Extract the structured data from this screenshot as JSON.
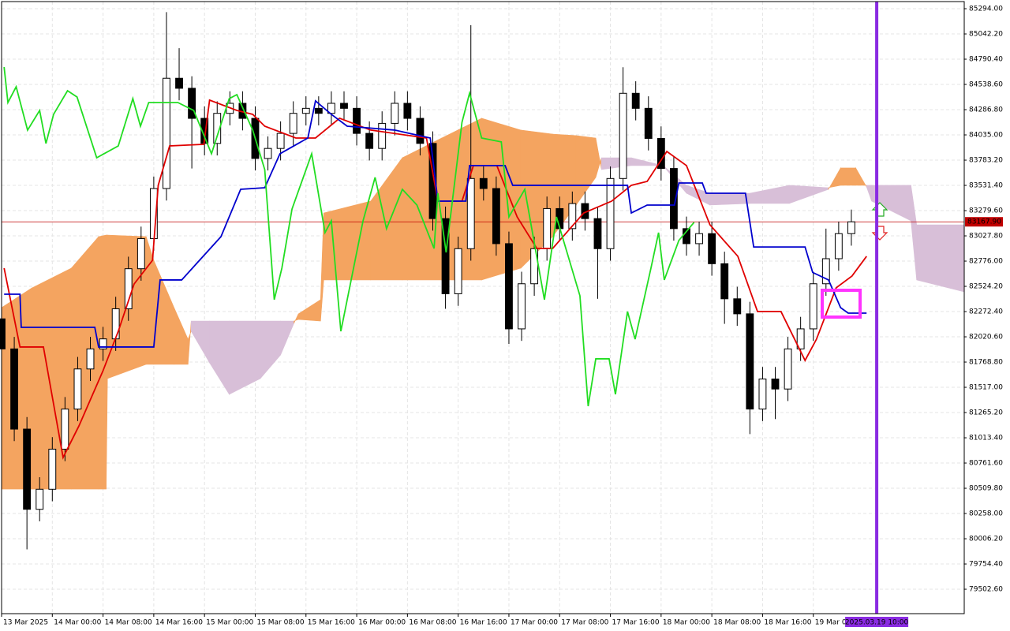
{
  "chart_data": {
    "type": "candlestick",
    "xlim": [
      -8,
      143.8
    ],
    "ylim": [
      79259,
      85365
    ],
    "grid": true,
    "yticks": [
      {
        "value": 85294,
        "label": "85294.00"
      },
      {
        "value": 85042.2,
        "label": "85042.20"
      },
      {
        "value": 84790.4,
        "label": "84790.40"
      },
      {
        "value": 84538.6,
        "label": "84538.60"
      },
      {
        "value": 84286.8,
        "label": "84286.80"
      },
      {
        "value": 84035,
        "label": "84035.00"
      },
      {
        "value": 83783.2,
        "label": "83783.20"
      },
      {
        "value": 83531.4,
        "label": "83531.40"
      },
      {
        "value": 83279.6,
        "label": "83279.60"
      },
      {
        "value": 83027.8,
        "label": "83027.80"
      },
      {
        "value": 82776,
        "label": "82776.00"
      },
      {
        "value": 82524.2,
        "label": "82524.20"
      },
      {
        "value": 82272.4,
        "label": "82272.40"
      },
      {
        "value": 82020.6,
        "label": "82020.60"
      },
      {
        "value": 81768.8,
        "label": "81768.80"
      },
      {
        "value": 81517,
        "label": "81517.00"
      },
      {
        "value": 81265.2,
        "label": "81265.20"
      },
      {
        "value": 81013.4,
        "label": "81013.40"
      },
      {
        "value": 80761.6,
        "label": "80761.60"
      },
      {
        "value": 80509.8,
        "label": "80509.80"
      },
      {
        "value": 80258,
        "label": "80258.00"
      },
      {
        "value": 80006.2,
        "label": "80006.20"
      },
      {
        "value": 79754.4,
        "label": "79754.40"
      },
      {
        "value": 79502.6,
        "label": "79502.60"
      }
    ],
    "xticks": [
      {
        "value": -8,
        "label": "13 Mar 2025"
      },
      {
        "value": 0,
        "label": "14 Mar 00:00"
      },
      {
        "value": 8,
        "label": "14 Mar 08:00"
      },
      {
        "value": 16,
        "label": "14 Mar 16:00"
      },
      {
        "value": 24,
        "label": "15 Mar 00:00"
      },
      {
        "value": 32,
        "label": "15 Mar 08:00"
      },
      {
        "value": 40,
        "label": "15 Mar 16:00"
      },
      {
        "value": 48,
        "label": "16 Mar 00:00"
      },
      {
        "value": 56,
        "label": "16 Mar 08:00"
      },
      {
        "value": 64,
        "label": "16 Mar 16:00"
      },
      {
        "value": 72,
        "label": "17 Mar 00:00"
      },
      {
        "value": 80,
        "label": "17 Mar 08:00"
      },
      {
        "value": 88,
        "label": "17 Mar 16:00"
      },
      {
        "value": 96,
        "label": "18 Mar 00:00"
      },
      {
        "value": 104,
        "label": "18 Mar 08:00"
      },
      {
        "value": 112,
        "label": "18 Mar 16:00"
      },
      {
        "value": 120,
        "label": "19 Mar 00:00"
      }
    ],
    "current_price": {
      "value": 83167.9,
      "label": "83167.90",
      "color": "#c00000"
    },
    "time_marker": {
      "value": 130,
      "label": "2025.03.19 10:00",
      "color": "#8a2be2"
    },
    "candles": {
      "up_color": "#ffffff",
      "down_color": "#000000",
      "x": [
        -8,
        -6,
        -4,
        -2,
        0,
        2,
        4,
        6,
        8,
        10,
        12,
        14,
        16,
        18,
        20,
        22,
        24,
        26,
        28,
        30,
        32,
        34,
        36,
        38,
        40,
        42,
        44,
        46,
        48,
        50,
        52,
        54,
        56,
        58,
        60,
        62,
        64,
        66,
        68,
        70,
        72,
        74,
        76,
        78,
        80,
        82,
        84,
        86,
        88,
        90,
        92,
        94,
        96,
        98,
        100,
        102,
        104,
        106,
        108,
        110,
        112,
        114,
        116,
        118,
        120,
        122,
        124,
        126
      ],
      "open": [
        82200,
        81900,
        81100,
        80300,
        80500,
        80900,
        81300,
        81700,
        81900,
        82000,
        82300,
        82700,
        83000,
        83500,
        84600,
        84500,
        84200,
        83950,
        84250,
        84350,
        84200,
        83800,
        83900,
        84050,
        84250,
        84300,
        84250,
        84350,
        84300,
        84050,
        83900,
        84150,
        84350,
        84200,
        83950,
        83200,
        82450,
        82900,
        83600,
        83500,
        82950,
        82100,
        82550,
        82900,
        83300,
        83100,
        83350,
        83200,
        82900,
        83600,
        84450,
        84300,
        84000,
        83700,
        83100,
        82950,
        83050,
        82750,
        82400,
        82250,
        81300,
        81600,
        81500,
        81900,
        82100,
        82550,
        82800,
        83050
      ],
      "high": [
        82320,
        82020,
        81220,
        80620,
        81020,
        81420,
        81820,
        82020,
        82120,
        82420,
        82820,
        83120,
        83620,
        85260,
        84900,
        84620,
        84320,
        84370,
        84470,
        84470,
        84320,
        84020,
        84170,
        84370,
        84420,
        84420,
        84470,
        84470,
        84420,
        84170,
        84270,
        84470,
        84470,
        84320,
        84070,
        83320,
        83020,
        85130,
        83720,
        83620,
        83070,
        82670,
        83020,
        83420,
        83420,
        83470,
        83470,
        83320,
        83720,
        84710,
        84570,
        84420,
        84120,
        83820,
        83220,
        83170,
        83170,
        82870,
        82520,
        82370,
        81720,
        81720,
        82020,
        82220,
        82670,
        83100,
        83170,
        83290
      ],
      "low": [
        81780,
        80980,
        79900,
        80180,
        80380,
        80780,
        81180,
        81580,
        81780,
        81880,
        82180,
        82580,
        82880,
        83380,
        84380,
        83700,
        83830,
        83830,
        84130,
        84080,
        83680,
        83680,
        83780,
        83930,
        84130,
        84130,
        84130,
        84180,
        83930,
        83780,
        83780,
        84030,
        84080,
        83830,
        83080,
        82300,
        82330,
        82780,
        83380,
        82830,
        81950,
        81980,
        82430,
        82780,
        82980,
        82980,
        83080,
        82400,
        82780,
        83480,
        84180,
        83880,
        83580,
        82980,
        82830,
        82830,
        82630,
        82150,
        82130,
        81050,
        81180,
        81200,
        81380,
        81780,
        81980,
        82430,
        82680,
        82930
      ],
      "close": [
        81900,
        81100,
        80300,
        80500,
        80900,
        81300,
        81700,
        81900,
        82000,
        82300,
        82700,
        83000,
        83500,
        84600,
        84500,
        84200,
        83950,
        84250,
        84350,
        84200,
        83800,
        83900,
        84050,
        84250,
        84300,
        84250,
        84350,
        84300,
        84050,
        83900,
        84150,
        84350,
        84200,
        83950,
        83200,
        82450,
        82900,
        83600,
        83500,
        82950,
        82100,
        82550,
        82900,
        83300,
        83100,
        83350,
        83200,
        82900,
        83600,
        84450,
        84300,
        84000,
        83700,
        83100,
        82950,
        83050,
        82750,
        82400,
        82250,
        81300,
        81600,
        81500,
        81900,
        82100,
        82550,
        82800,
        83050,
        83168
      ]
    },
    "cloud": {
      "up_color": "#f4a460",
      "down_color": "#d8bfd8",
      "x": [
        -8,
        -3.2,
        3,
        7.3,
        8.5,
        8.7,
        14.8,
        16,
        19.2,
        21.4,
        21.9,
        24.8,
        27.9,
        32.8,
        36,
        38.1,
        38.8,
        42.3,
        42.8,
        50.2,
        55.2,
        61.4,
        67.7,
        73.9,
        78.9,
        82.6,
        85.7,
        86.6,
        91.3,
        96.3,
        100,
        103.7,
        110,
        116.2,
        122.4,
        124.3,
        126.7,
        128.4,
        129.2,
        135.4,
        136.3,
        143.8
      ],
      "span_a": [
        82312,
        82509,
        82706,
        83020,
        83036,
        83036,
        83020,
        82784,
        82312,
        81997,
        82076,
        81761,
        81447,
        81604,
        81840,
        82155,
        82249,
        82391,
        83256,
        83374,
        83807,
        84004,
        84201,
        84083,
        84043,
        84028,
        84004,
        83689,
        83729,
        83729,
        83453,
        83335,
        83351,
        83351,
        83492,
        83705,
        83705,
        83516,
        83374,
        83178,
        82588,
        82469
      ],
      "span_b": [
        80502,
        80502,
        80502,
        80502,
        80502,
        81604,
        81746,
        81746,
        81746,
        81746,
        82178,
        82178,
        82178,
        82178,
        82178,
        82178,
        82194,
        82178,
        82588,
        82588,
        82588,
        82588,
        82588,
        82706,
        83020,
        83335,
        83611,
        83807,
        83807,
        83729,
        83532,
        83453,
        83453,
        83532,
        83508,
        83532,
        83532,
        83532,
        83532,
        83532,
        83138,
        83138
      ]
    },
    "lines": [
      {
        "color": "#e00000",
        "x": [
          -7.6,
          -5.1,
          -1.4,
          1.7,
          4.2,
          8,
          10.4,
          12.9,
          15.8,
          16.7,
          18.5,
          23.9,
          24.8,
          29.1,
          31.6,
          33.5,
          38.4,
          41.5,
          45.3,
          50.2,
          59,
          60.8,
          64.6,
          66.4,
          70.1,
          73.3,
          76.4,
          78.9,
          83.8,
          88.2,
          91.3,
          93.8,
          96.9,
          100,
          103.7,
          108.1,
          111.2,
          114.9,
          118.7,
          120.5,
          123.6,
          126.1,
          128.4
        ],
        "values": [
          82706,
          81919,
          81919,
          80817,
          81132,
          81683,
          82076,
          82548,
          82784,
          83532,
          83925,
          83941,
          84382,
          84279,
          84240,
          84122,
          84004,
          84004,
          84201,
          84083,
          84004,
          83374,
          83374,
          83729,
          83729,
          83217,
          82902,
          82902,
          83256,
          83374,
          83532,
          83571,
          83870,
          83729,
          83138,
          82824,
          82273,
          82273,
          81785,
          81997,
          82509,
          82627,
          82824
        ]
      },
      {
        "color": "#0000cd",
        "x": [
          -7.6,
          -5.1,
          -4.9,
          6.7,
          7.3,
          16,
          17,
          20.4,
          26.6,
          29.7,
          33.5,
          35.9,
          40.3,
          41.5,
          44,
          46.5,
          54,
          59.6,
          60.8,
          65.2,
          65.8,
          71.4,
          72.6,
          90.7,
          91.3,
          93.8,
          98.1,
          98.8,
          102.5,
          103.1,
          109.3,
          110.6,
          118.7,
          119.9,
          122.4,
          124.3,
          125.5,
          128.4
        ],
        "values": [
          82446,
          82446,
          82115,
          82115,
          81919,
          81919,
          82588,
          82588,
          83020,
          83492,
          83508,
          83847,
          84004,
          84374,
          84240,
          84122,
          84083,
          84004,
          83374,
          83374,
          83729,
          83729,
          83532,
          83532,
          83256,
          83335,
          83335,
          83555,
          83555,
          83453,
          83453,
          82917,
          82917,
          82663,
          82588,
          82312,
          82257,
          82257
        ]
      },
      {
        "color": "#22dd22",
        "x": [
          -7.6,
          -7,
          -5.7,
          -3.9,
          -2,
          -1,
          0.2,
          2.4,
          3.9,
          7,
          10.4,
          12.7,
          13.9,
          15.2,
          19.8,
          22.3,
          25.1,
          27.9,
          29.1,
          31.6,
          33.5,
          35,
          36.2,
          37.8,
          40.9,
          43,
          44,
          45.5,
          49,
          50.9,
          52.7,
          55.2,
          57.5,
          60.2,
          60.8,
          62.1,
          64.6,
          65.8,
          67.7,
          70.8,
          72,
          74.5,
          77.6,
          79.5,
          83.2,
          84.5,
          85.7,
          87.8,
          88.8,
          90.7,
          91.9,
          94.4,
          95.6,
          96.5,
          98.8,
          101.2
        ],
        "values": [
          84712,
          84358,
          84515,
          84083,
          84279,
          83949,
          84240,
          84476,
          84413,
          83807,
          83925,
          84397,
          84122,
          84358,
          84358,
          84279,
          83847,
          84397,
          84437,
          84083,
          83689,
          82391,
          82706,
          83296,
          83847,
          83060,
          83178,
          82076,
          83178,
          83611,
          83099,
          83492,
          83335,
          82902,
          83453,
          82863,
          84161,
          84452,
          84004,
          83965,
          83217,
          83492,
          82391,
          83217,
          82430,
          81329,
          81801,
          81801,
          81447,
          82273,
          81997,
          82706,
          83060,
          82588,
          82982,
          83162
        ]
      }
    ]
  }
}
